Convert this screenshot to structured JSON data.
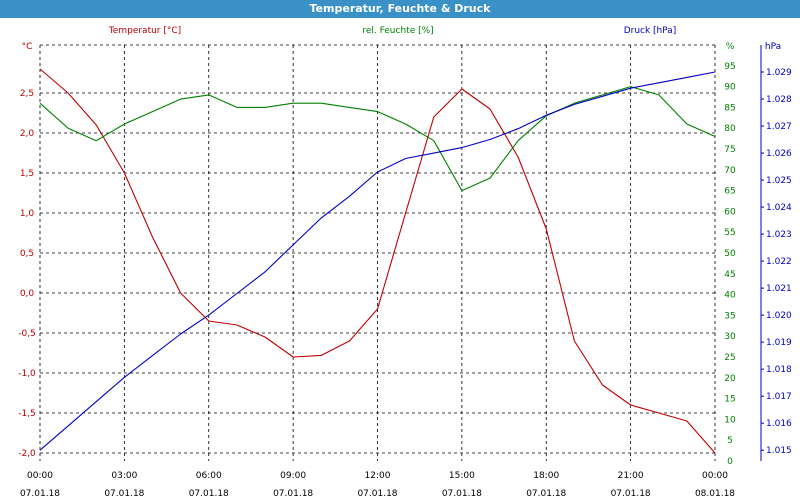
{
  "window": {
    "title": "Temperatur, Feuchte & Druck"
  },
  "colors": {
    "titlebar": "#3a91c8",
    "temp": "#c00000",
    "humidity": "#008000",
    "pressure": "#0000c8"
  },
  "chart_data": {
    "type": "line",
    "title": "Temperatur, Feuchte & Druck",
    "grid": true,
    "x": [
      "07.01.18 00:00",
      "07.01.18 01:00",
      "07.01.18 02:00",
      "07.01.18 03:00",
      "07.01.18 04:00",
      "07.01.18 05:00",
      "07.01.18 06:00",
      "07.01.18 07:00",
      "07.01.18 08:00",
      "07.01.18 09:00",
      "07.01.18 10:00",
      "07.01.18 11:00",
      "07.01.18 12:00",
      "07.01.18 13:00",
      "07.01.18 14:00",
      "07.01.18 15:00",
      "07.01.18 16:00",
      "07.01.18 17:00",
      "07.01.18 18:00",
      "07.01.18 19:00",
      "07.01.18 20:00",
      "07.01.18 21:00",
      "07.01.18 22:00",
      "07.01.18 23:00",
      "08.01.18 00:00"
    ],
    "x_ticks": [
      {
        "time": "00:00",
        "date": "07.01.18"
      },
      {
        "time": "03:00",
        "date": "07.01.18"
      },
      {
        "time": "06:00",
        "date": "07.01.18"
      },
      {
        "time": "09:00",
        "date": "07.01.18"
      },
      {
        "time": "12:00",
        "date": "07.01.18"
      },
      {
        "time": "15:00",
        "date": "07.01.18"
      },
      {
        "time": "18:00",
        "date": "07.01.18"
      },
      {
        "time": "21:00",
        "date": "07.01.18"
      },
      {
        "time": "00:00",
        "date": "08.01.18"
      }
    ],
    "axes": {
      "temp": {
        "label": "Temperatur [°C]",
        "unit": "°C",
        "ylim": [
          -2.1,
          3.1
        ],
        "ticks": [
          {
            "v": 2.5,
            "t": "2,5"
          },
          {
            "v": 2,
            "t": "2,0"
          },
          {
            "v": 1.5,
            "t": "1,5"
          },
          {
            "v": 1,
            "t": "1,0"
          },
          {
            "v": 0.5,
            "t": "0,5"
          },
          {
            "v": 0,
            "t": "0,0"
          },
          {
            "v": -0.5,
            "t": "-0,5"
          },
          {
            "v": -1,
            "t": "-1,0"
          },
          {
            "v": -1.5,
            "t": "-1,5"
          },
          {
            "v": -2,
            "t": "-2,0"
          }
        ]
      },
      "humidity": {
        "label": "rel. Feuchte [%]",
        "unit": "%",
        "ylim": [
          0,
          100
        ],
        "ticks": [
          {
            "v": 95,
            "t": "95"
          },
          {
            "v": 90,
            "t": "90"
          },
          {
            "v": 85,
            "t": "85"
          },
          {
            "v": 80,
            "t": "80"
          },
          {
            "v": 75,
            "t": "75"
          },
          {
            "v": 70,
            "t": "70"
          },
          {
            "v": 65,
            "t": "65"
          },
          {
            "v": 60,
            "t": "60"
          },
          {
            "v": 55,
            "t": "55"
          },
          {
            "v": 50,
            "t": "50"
          },
          {
            "v": 45,
            "t": "45"
          },
          {
            "v": 40,
            "t": "40"
          },
          {
            "v": 35,
            "t": "35"
          },
          {
            "v": 30,
            "t": "30"
          },
          {
            "v": 25,
            "t": "25"
          },
          {
            "v": 20,
            "t": "20"
          },
          {
            "v": 15,
            "t": "15"
          },
          {
            "v": 10,
            "t": "10"
          },
          {
            "v": 5,
            "t": "5"
          },
          {
            "v": 0,
            "t": "0"
          }
        ]
      },
      "pressure": {
        "label": "Druck [hPa]",
        "unit": "hPa",
        "ylim": [
          1014.6,
          1030.0
        ],
        "ticks": [
          {
            "v": 1029,
            "t": "1.029"
          },
          {
            "v": 1028,
            "t": "1.028"
          },
          {
            "v": 1027,
            "t": "1.027"
          },
          {
            "v": 1026,
            "t": "1.026"
          },
          {
            "v": 1025,
            "t": "1.025"
          },
          {
            "v": 1024,
            "t": "1.024"
          },
          {
            "v": 1023,
            "t": "1.023"
          },
          {
            "v": 1022,
            "t": "1.022"
          },
          {
            "v": 1021,
            "t": "1.021"
          },
          {
            "v": 1020,
            "t": "1.020"
          },
          {
            "v": 1019,
            "t": "1.019"
          },
          {
            "v": 1018,
            "t": "1.018"
          },
          {
            "v": 1017,
            "t": "1.017"
          },
          {
            "v": 1016,
            "t": "1.016"
          },
          {
            "v": 1015,
            "t": "1.015"
          }
        ]
      }
    },
    "series": [
      {
        "name": "Temperatur [°C]",
        "axis": "temp",
        "values": [
          2.8,
          2.5,
          2.1,
          1.5,
          0.7,
          0.0,
          -0.35,
          -0.4,
          -0.55,
          -0.8,
          -0.78,
          -0.6,
          -0.2,
          1.0,
          2.2,
          2.55,
          2.3,
          1.7,
          0.8,
          -0.6,
          -1.15,
          -1.4,
          -1.5,
          -1.6,
          -2.0
        ]
      },
      {
        "name": "rel. Feuchte [%]",
        "axis": "humidity",
        "values": [
          86,
          80,
          77,
          81,
          84,
          87,
          88,
          85,
          85,
          86,
          86,
          85,
          84,
          81,
          77,
          65,
          68,
          77,
          83,
          86,
          88,
          90,
          88,
          81,
          78
        ]
      },
      {
        "name": "Druck [hPa]",
        "axis": "pressure",
        "values": [
          1015.0,
          1015.9,
          1016.8,
          1017.7,
          1018.5,
          1019.3,
          1020.0,
          1020.8,
          1021.6,
          1022.6,
          1023.6,
          1024.4,
          1025.3,
          1025.8,
          1026.0,
          1026.2,
          1026.5,
          1026.9,
          1027.4,
          1027.8,
          1028.1,
          1028.4,
          1028.6,
          1028.8,
          1029.0
        ]
      }
    ]
  }
}
